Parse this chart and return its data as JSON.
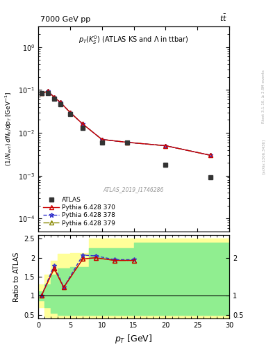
{
  "title_left": "7000 GeV pp",
  "title_right": "t$\\bar{t}$",
  "main_annotation": "p$_T$(K$^0_S$) (ATLAS KS and $\\Lambda$ in ttbar)",
  "watermark": "ATLAS_2019_I1746286",
  "rivet_label": "Rivet 3.1.10, ≥ 2.9M events",
  "arxiv_label": "[arXiv:1306.3436]",
  "xlabel": "p$_T$ [GeV]",
  "ylabel": "(1/N$_{evt}$) dN$_K$/dp$_T$ [GeV$^{-1}$]",
  "ratio_ylabel": "Ratio to ATLAS",
  "xlim": [
    0,
    30
  ],
  "ylim_main": [
    5e-05,
    3.0
  ],
  "ylim_ratio": [
    0.4,
    2.6
  ],
  "atlas_x": [
    0.5,
    1.5,
    2.5,
    3.5,
    5.0,
    7.0,
    10.0,
    14.0,
    20.0,
    27.0
  ],
  "atlas_y": [
    0.083,
    0.083,
    0.063,
    0.047,
    0.027,
    0.013,
    0.006,
    0.006,
    0.0018,
    0.0009
  ],
  "py370_x": [
    0.5,
    1.5,
    2.5,
    3.5,
    5.0,
    7.0,
    10.0,
    14.0,
    20.0,
    27.0
  ],
  "py370_y": [
    0.083,
    0.093,
    0.068,
    0.051,
    0.03,
    0.016,
    0.007,
    0.006,
    0.005,
    0.003
  ],
  "py378_x": [
    0.5,
    1.5,
    2.5,
    3.5,
    5.0,
    7.0,
    10.0,
    14.0,
    20.0,
    27.0
  ],
  "py378_y": [
    0.083,
    0.095,
    0.068,
    0.051,
    0.03,
    0.016,
    0.007,
    0.006,
    0.005,
    0.003
  ],
  "py379_x": [
    0.5,
    1.5,
    2.5,
    3.5,
    5.0,
    7.0,
    10.0,
    14.0,
    20.0,
    27.0
  ],
  "py379_y": [
    0.083,
    0.093,
    0.068,
    0.051,
    0.03,
    0.016,
    0.007,
    0.006,
    0.005,
    0.003
  ],
  "ratio_x": [
    0.5,
    2.5,
    4.0,
    7.0,
    9.0,
    12.0,
    15.0
  ],
  "ratio370_y": [
    1.0,
    1.72,
    1.22,
    1.97,
    2.0,
    1.93,
    1.93
  ],
  "ratio378_y": [
    1.0,
    1.8,
    1.22,
    2.07,
    2.05,
    1.95,
    1.95
  ],
  "ratio379_y": [
    1.0,
    1.72,
    1.22,
    1.97,
    2.0,
    1.93,
    1.93
  ],
  "green_bins_x": [
    0,
    1,
    2,
    3,
    5,
    8,
    15,
    20,
    30
  ],
  "green_top": [
    1.12,
    1.3,
    1.55,
    1.72,
    1.75,
    2.25,
    2.4,
    2.4,
    2.4
  ],
  "green_bot": [
    0.88,
    0.7,
    0.55,
    0.5,
    0.5,
    0.5,
    0.5,
    0.5,
    0.5
  ],
  "yellow_bins_x": [
    0,
    1,
    2,
    3,
    5,
    8,
    15,
    20,
    30
  ],
  "yellow_top": [
    1.3,
    1.55,
    1.92,
    2.1,
    2.12,
    2.5,
    2.5,
    2.5,
    2.5
  ],
  "yellow_bot": [
    0.7,
    0.45,
    0.42,
    0.42,
    0.42,
    0.42,
    0.42,
    0.42,
    0.42
  ],
  "color_atlas": "#333333",
  "color_370": "#cc0000",
  "color_378": "#3333cc",
  "color_379": "#888800",
  "green_color": "#90ee90",
  "yellow_color": "#ffff99"
}
